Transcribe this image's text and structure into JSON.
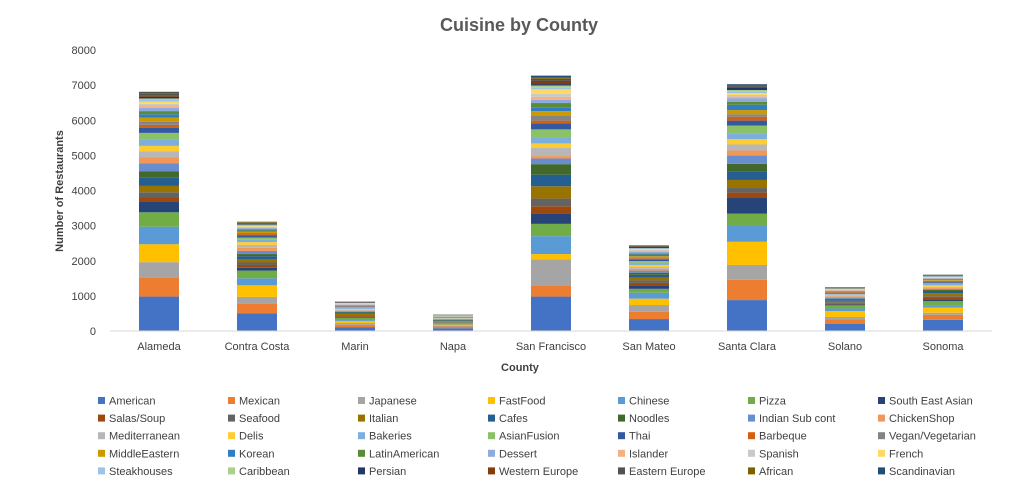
{
  "chart_data": {
    "type": "bar",
    "stacked": true,
    "title": "Cuisine by County",
    "xlabel": "County",
    "ylabel": "Number of Restaurants",
    "ylim": [
      0,
      8000
    ],
    "yticks": [
      0,
      1000,
      2000,
      3000,
      4000,
      5000,
      6000,
      7000,
      8000
    ],
    "grid": false,
    "legend_position": "bottom",
    "categories": [
      "Alameda",
      "Contra Costa",
      "Marin",
      "Napa",
      "San Francisco",
      "San Mateo",
      "Santa Clara",
      "Solano",
      "Sonoma"
    ],
    "series": [
      {
        "name": "American",
        "color": "#4472C4",
        "values": [
          980,
          500,
          110,
          80,
          980,
          340,
          880,
          200,
          320
        ]
      },
      {
        "name": "Mexican",
        "color": "#ED7D31",
        "values": [
          540,
          270,
          70,
          50,
          320,
          210,
          580,
          130,
          140
        ]
      },
      {
        "name": "Japanese",
        "color": "#A5A5A5",
        "values": [
          440,
          200,
          50,
          25,
          740,
          190,
          420,
          70,
          60
        ]
      },
      {
        "name": "FastFood",
        "color": "#FFC000",
        "values": [
          510,
          330,
          50,
          30,
          150,
          180,
          660,
          170,
          150
        ]
      },
      {
        "name": "Chinese",
        "color": "#5B9BD5",
        "values": [
          500,
          200,
          30,
          15,
          510,
          170,
          450,
          70,
          60
        ]
      },
      {
        "name": "Pizza",
        "color": "#70AD47",
        "values": [
          410,
          220,
          70,
          40,
          350,
          110,
          350,
          90,
          120
        ]
      },
      {
        "name": "South East Asian",
        "color": "#264478",
        "values": [
          310,
          80,
          25,
          10,
          300,
          100,
          470,
          30,
          50
        ]
      },
      {
        "name": "Salas/Soup",
        "color": "#9E480E",
        "values": [
          110,
          80,
          25,
          15,
          200,
          70,
          130,
          30,
          40
        ]
      },
      {
        "name": "Seafood",
        "color": "#636363",
        "values": [
          150,
          70,
          25,
          10,
          220,
          70,
          130,
          30,
          50
        ]
      },
      {
        "name": "Italian",
        "color": "#997300",
        "values": [
          180,
          100,
          35,
          20,
          350,
          80,
          230,
          40,
          90
        ]
      },
      {
        "name": "Cafes",
        "color": "#255E91",
        "values": [
          230,
          80,
          40,
          20,
          330,
          80,
          230,
          40,
          60
        ]
      },
      {
        "name": "Noodles",
        "color": "#43682B",
        "values": [
          190,
          60,
          20,
          10,
          300,
          60,
          230,
          20,
          30
        ]
      },
      {
        "name": "Indian Sub cont",
        "color": "#698ED0",
        "values": [
          220,
          90,
          15,
          5,
          160,
          60,
          240,
          30,
          30
        ]
      },
      {
        "name": "ChickenShop",
        "color": "#F1975A",
        "values": [
          170,
          90,
          15,
          10,
          70,
          50,
          140,
          40,
          30
        ]
      },
      {
        "name": "Mediterranean",
        "color": "#B7B7B7",
        "values": [
          180,
          80,
          20,
          10,
          240,
          50,
          170,
          20,
          30
        ]
      },
      {
        "name": "Delis",
        "color": "#FFCD33",
        "values": [
          150,
          80,
          30,
          10,
          120,
          60,
          150,
          20,
          40
        ]
      },
      {
        "name": "Bakeries",
        "color": "#7CAFDD",
        "values": [
          170,
          70,
          30,
          10,
          170,
          60,
          160,
          20,
          40
        ]
      },
      {
        "name": "AsianFusion",
        "color": "#8CC168",
        "values": [
          200,
          60,
          15,
          5,
          230,
          50,
          230,
          10,
          20
        ]
      },
      {
        "name": "Thai",
        "color": "#335AA1",
        "values": [
          150,
          60,
          20,
          10,
          170,
          50,
          140,
          20,
          30
        ]
      },
      {
        "name": "Barbeque",
        "color": "#D26012",
        "values": [
          80,
          40,
          10,
          5,
          80,
          30,
          110,
          20,
          20
        ]
      },
      {
        "name": "Vegan/Vegetarian",
        "color": "#848484",
        "values": [
          90,
          30,
          10,
          5,
          150,
          30,
          70,
          10,
          20
        ]
      },
      {
        "name": "MiddleEastern",
        "color": "#CC9A00",
        "values": [
          110,
          40,
          10,
          5,
          120,
          30,
          120,
          10,
          20
        ]
      },
      {
        "name": "Korean",
        "color": "#327EC2",
        "values": [
          100,
          30,
          5,
          5,
          110,
          50,
          150,
          10,
          10
        ]
      },
      {
        "name": "LatinAmerican",
        "color": "#5A8B39",
        "values": [
          90,
          30,
          10,
          5,
          120,
          30,
          80,
          10,
          20
        ]
      },
      {
        "name": "Dessert",
        "color": "#8FAADC",
        "values": [
          90,
          40,
          10,
          5,
          90,
          40,
          110,
          10,
          20
        ]
      },
      {
        "name": "Islander",
        "color": "#F4B183",
        "values": [
          70,
          20,
          10,
          5,
          90,
          40,
          50,
          20,
          10
        ]
      },
      {
        "name": "Spanish",
        "color": "#C9C9C9",
        "values": [
          50,
          20,
          10,
          5,
          80,
          20,
          40,
          10,
          10
        ]
      },
      {
        "name": "French",
        "color": "#FFD966",
        "values": [
          60,
          20,
          15,
          10,
          130,
          20,
          50,
          10,
          20
        ]
      },
      {
        "name": "Steakhouses",
        "color": "#9DC3E6",
        "values": [
          50,
          30,
          10,
          5,
          60,
          20,
          60,
          10,
          10
        ]
      },
      {
        "name": "Caribbean",
        "color": "#A9D18E",
        "values": [
          40,
          10,
          5,
          5,
          50,
          10,
          30,
          10,
          10
        ]
      },
      {
        "name": "Persian",
        "color": "#203864",
        "values": [
          50,
          20,
          10,
          5,
          40,
          30,
          60,
          10,
          10
        ]
      },
      {
        "name": "Western Europe",
        "color": "#843C0C",
        "values": [
          40,
          10,
          10,
          5,
          90,
          10,
          30,
          10,
          10
        ]
      },
      {
        "name": "Eastern Europe",
        "color": "#525252",
        "values": [
          40,
          20,
          10,
          5,
          60,
          20,
          40,
          10,
          10
        ]
      },
      {
        "name": "African",
        "color": "#7F6000",
        "values": [
          40,
          20,
          5,
          5,
          50,
          10,
          20,
          5,
          10
        ]
      },
      {
        "name": "Scandinavian",
        "color": "#1F4E79",
        "values": [
          20,
          10,
          5,
          5,
          40,
          10,
          20,
          5,
          5
        ]
      }
    ]
  }
}
